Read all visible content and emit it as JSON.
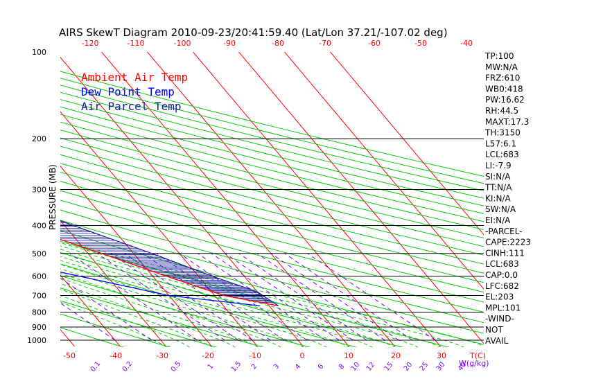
{
  "chart_data": {
    "type": "line",
    "title": "AIRS SkewT Diagram 2010-09-23/20:41:59.40 (Lat/Lon 37.21/-107.02 deg)",
    "ylabel": "PRESSURE (MB)",
    "xlabel": "T(C)",
    "mixing_ratio_unit": "W(g/kg)",
    "pressure_ticks": [
      {
        "p": 100,
        "label": "100"
      },
      {
        "p": 200,
        "label": "200"
      },
      {
        "p": 300,
        "label": "300"
      },
      {
        "p": 400,
        "label": "400"
      },
      {
        "p": 500,
        "label": "500"
      },
      {
        "p": 600,
        "label": "600"
      },
      {
        "p": 700,
        "label": "700"
      },
      {
        "p": 800,
        "label": "800"
      },
      {
        "p": 900,
        "label": "900"
      },
      {
        "p": 1000,
        "label": "1000"
      }
    ],
    "pressure_lines": [
      200,
      300,
      400,
      500,
      600,
      700,
      800,
      900,
      1000
    ],
    "top_temp_ticks": [
      "-120",
      "-110",
      "-100",
      "-90",
      "-80",
      "-70",
      "-60",
      "-50",
      "-40"
    ],
    "bottom_temp_ticks": [
      "-50",
      "-40",
      "-30",
      "-20",
      "-10",
      "0",
      "10",
      "20",
      "30"
    ],
    "mixing_ratio_ticks": [
      "0.1",
      "0.2",
      "0.5",
      "1",
      "1.5",
      "2",
      "3",
      "4",
      "6",
      "8",
      "10",
      "12",
      "15",
      "20",
      "25",
      "30",
      "40"
    ],
    "legend": [
      {
        "label": "Ambient Air Temp",
        "color": "#ff0000"
      },
      {
        "label": "Dew Point Temp",
        "color": "#0000ff"
      },
      {
        "label": "Air Parcel Temp",
        "color": "#1a1aa0"
      }
    ],
    "series": [
      {
        "name": "Ambient Air Temp",
        "color": "#ff0000",
        "points": [
          [
            100,
            -70
          ],
          [
            130,
            -72
          ],
          [
            160,
            -70
          ],
          [
            200,
            -67
          ],
          [
            250,
            -64
          ],
          [
            300,
            -56
          ],
          [
            350,
            -47
          ],
          [
            400,
            -40
          ],
          [
            500,
            -27
          ],
          [
            600,
            -17
          ],
          [
            700,
            -8
          ],
          [
            760,
            2
          ]
        ]
      },
      {
        "name": "Dew Point Temp",
        "color": "#0000ff",
        "points": [
          [
            100,
            -87
          ],
          [
            150,
            -87
          ],
          [
            200,
            -91
          ],
          [
            250,
            -90
          ],
          [
            300,
            -88
          ],
          [
            350,
            -88
          ],
          [
            400,
            -88
          ],
          [
            450,
            -72
          ],
          [
            500,
            -55
          ],
          [
            600,
            -36
          ],
          [
            700,
            -20
          ],
          [
            760,
            -2
          ]
        ]
      },
      {
        "name": "Air Parcel Temp",
        "color": "#1a1aa0",
        "points": [
          [
            100,
            -91
          ],
          [
            150,
            -79
          ],
          [
            200,
            -67
          ],
          [
            250,
            -54
          ],
          [
            300,
            -43
          ],
          [
            400,
            -28
          ],
          [
            500,
            -16
          ],
          [
            600,
            -7
          ],
          [
            680,
            0
          ],
          [
            760,
            2
          ]
        ]
      }
    ],
    "stats": [
      "TP:100",
      "MW:N/A",
      "FRZ:610",
      "WB0:418",
      "PW:16.62",
      "RH:44.5",
      "MAXT:17.3",
      "TH:3150",
      "L57:6.1",
      "LCL:683",
      "LI:-7.9",
      "SI:N/A",
      "TT:N/A",
      "KI:N/A",
      "SW:N/A",
      "EI:N/A",
      "-PARCEL-",
      "CAPE:2223",
      "CINH:111",
      "LCL:683",
      "CAP:0.0",
      "LFC:682",
      "EL:203",
      "MPL:101",
      "-WIND-",
      "NOT",
      "AVAIL"
    ],
    "colors": {
      "isotherm": "#ff0000",
      "dry_adiabat": "#00cc00",
      "moist_adiabat": "#00cc00",
      "mixing_ratio": "#8000ff",
      "isobar": "#000000",
      "hatch": "#1a1aa0"
    }
  }
}
